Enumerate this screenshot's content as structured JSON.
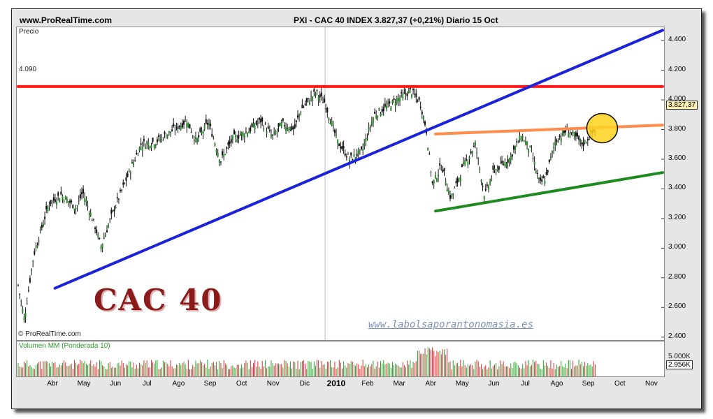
{
  "header": {
    "site": "www.ProRealTime.com",
    "title": "PXI - CAC 40 INDEX   3.827,37 (+0,21%)   Diario  15 Oct"
  },
  "labels": {
    "price_axis": "Precio",
    "level_label": "4.090",
    "copyright": "© ProRealTime.com",
    "volume_title": "Volumen MM (Ponderada 10)",
    "chart_title": "CAC 40",
    "watermark": "www.labolsaporantonomasia.es",
    "last_price": "3.827,37",
    "vol_scale": "5.000K",
    "vol_last": "2.956K"
  },
  "colors": {
    "resistance": "#ff1a1a",
    "long_trend": "#1c22d8",
    "wedge_top": "#ff8c4a",
    "wedge_bottom": "#1f8a1f",
    "highlight": "#ffd21f",
    "title": "#8b1a1a"
  },
  "chart_data": {
    "type": "candlestick",
    "period": "Diario",
    "y_ticks": [
      "4.400",
      "4.200",
      "4.000",
      "3.800",
      "3.600",
      "3.400",
      "3.200",
      "3.000",
      "2.800",
      "2.600",
      "2.400"
    ],
    "ylim": [
      2380,
      4490
    ],
    "x_ticks": [
      "Abr",
      "May",
      "Jun",
      "Jul",
      "Ago",
      "Sep",
      "Oct",
      "Nov",
      "Dic",
      "2010",
      "Feb",
      "Mar",
      "Abr",
      "May",
      "Jun",
      "Jul",
      "Ago",
      "Sep",
      "Oct",
      "Nov"
    ],
    "price_path": [
      [
        0,
        2750
      ],
      [
        0.02,
        2520
      ],
      [
        0.05,
        2950
      ],
      [
        0.1,
        3300
      ],
      [
        0.14,
        3360
      ],
      [
        0.19,
        3270
      ],
      [
        0.21,
        3380
      ],
      [
        0.25,
        3150
      ],
      [
        0.27,
        3010
      ],
      [
        0.31,
        3250
      ],
      [
        0.36,
        3500
      ],
      [
        0.4,
        3700
      ],
      [
        0.45,
        3720
      ],
      [
        0.5,
        3790
      ],
      [
        0.55,
        3860
      ],
      [
        0.58,
        3720
      ],
      [
        0.62,
        3850
      ],
      [
        0.66,
        3590
      ],
      [
        0.7,
        3740
      ],
      [
        0.75,
        3790
      ],
      [
        0.79,
        3860
      ],
      [
        0.83,
        3750
      ],
      [
        0.86,
        3840
      ],
      [
        0.9,
        3800
      ],
      [
        0.92,
        3930
      ],
      [
        0.97,
        4050
      ],
      [
        1,
        3980
      ],
      [
        1.04,
        3720
      ],
      [
        1.08,
        3600
      ],
      [
        1.12,
        3650
      ],
      [
        1.16,
        3900
      ],
      [
        1.2,
        3950
      ],
      [
        1.24,
        4010
      ],
      [
        1.28,
        4060
      ],
      [
        1.31,
        3980
      ],
      [
        1.33,
        3800
      ],
      [
        1.35,
        3430
      ],
      [
        1.38,
        3560
      ],
      [
        1.41,
        3330
      ],
      [
        1.45,
        3550
      ],
      [
        1.49,
        3700
      ],
      [
        1.52,
        3350
      ],
      [
        1.55,
        3520
      ],
      [
        1.6,
        3600
      ],
      [
        1.64,
        3760
      ],
      [
        1.67,
        3660
      ],
      [
        1.7,
        3430
      ],
      [
        1.72,
        3480
      ],
      [
        1.75,
        3720
      ],
      [
        1.79,
        3800
      ],
      [
        1.84,
        3700
      ],
      [
        1.88,
        3800
      ]
    ],
    "lines": [
      {
        "name": "resistance",
        "points": [
          [
            0,
            4090
          ],
          [
            2.1,
            4090
          ]
        ]
      },
      {
        "name": "long_trend",
        "points": [
          [
            0.12,
            2730
          ],
          [
            2.1,
            4470
          ]
        ]
      },
      {
        "name": "wedge_top",
        "points": [
          [
            1.36,
            3770
          ],
          [
            2.1,
            3830
          ]
        ]
      },
      {
        "name": "wedge_bottom",
        "points": [
          [
            1.36,
            3250
          ],
          [
            2.1,
            3510
          ]
        ]
      }
    ]
  }
}
